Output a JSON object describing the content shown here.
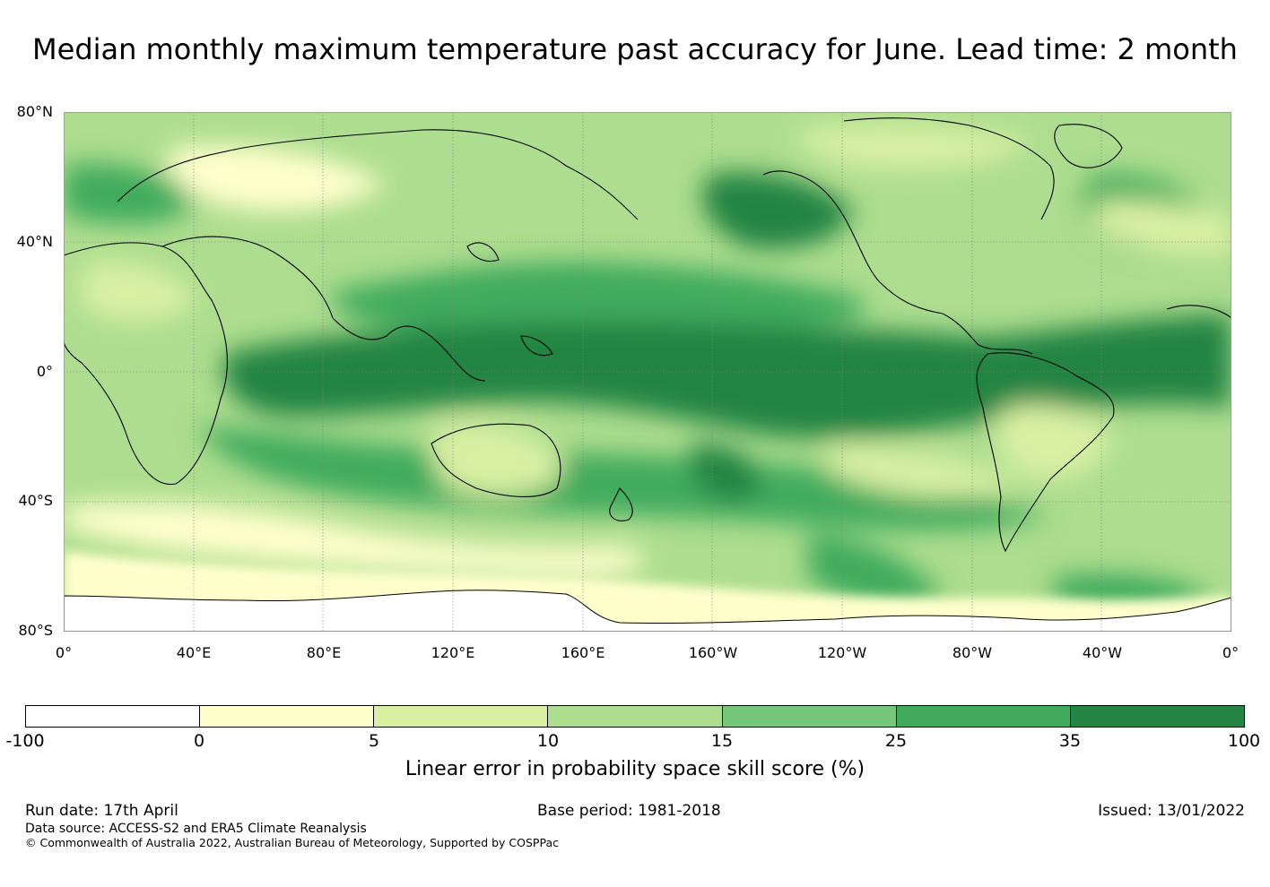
{
  "title": "Median monthly maximum temperature past accuracy for June. Lead time: 2 month",
  "map": {
    "lat_labels": [
      "80°N",
      "40°N",
      "0°",
      "40°S",
      "80°S"
    ],
    "lon_labels": [
      "0°",
      "40°E",
      "80°E",
      "120°E",
      "160°E",
      "160°W",
      "120°W",
      "80°W",
      "40°W",
      "0°"
    ],
    "palette": [
      "#ffffff",
      "#ffffcc",
      "#d9f0a3",
      "#addd8e",
      "#78c679",
      "#41ab5d",
      "#238443"
    ]
  },
  "colorbar": {
    "ticks": [
      "-100",
      "0",
      "5",
      "10",
      "15",
      "25",
      "35",
      "100"
    ],
    "label": "Linear error in probability space skill score (%)"
  },
  "footer": {
    "run_date": "Run date: 17th April",
    "base_period": "Base period: 1981-2018",
    "issued": "Issued: 13/01/2022",
    "data_source": "Data source: ACCESS-S2 and ERA5 Climate Reanalysis",
    "copyright": "© Commonwealth of Australia 2022, Australian Bureau of Meteorology, Supported by COSPPac"
  }
}
